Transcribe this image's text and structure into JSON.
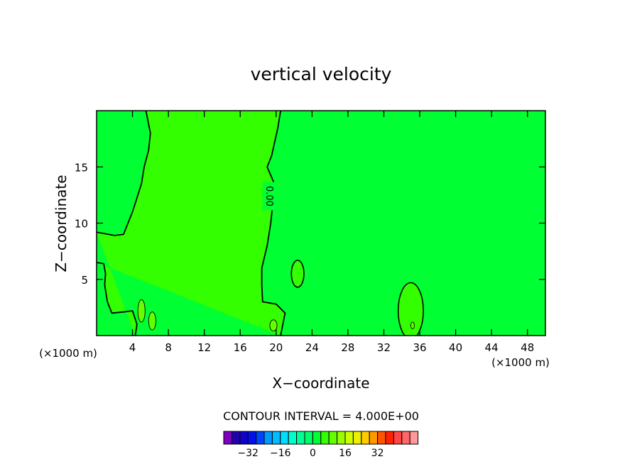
{
  "chart_data": {
    "type": "contour",
    "title": "vertical velocity",
    "xlabel": "X−coordinate",
    "ylabel": "Z−coordinate",
    "x_unit_left": "(×1000 m)",
    "x_unit_right": "(×1000 m)",
    "xlim": [
      0,
      50
    ],
    "ylim": [
      0,
      20
    ],
    "x_ticks": [
      4,
      8,
      12,
      16,
      20,
      24,
      28,
      32,
      36,
      40,
      44,
      48
    ],
    "y_ticks": [
      5,
      10,
      15
    ],
    "contour_label": "0.00",
    "contour_interval_text": "CONTOUR INTERVAL = 4.000E+00",
    "colors": {
      "plot_background": "#00ff33",
      "updraft_fill": "#33ff00",
      "strong_updraft_fill": "#66ff00",
      "contour_line": "#000000"
    },
    "updraft_region": {
      "level": 0,
      "left_boundary": [
        [
          0,
          9.2
        ],
        [
          2,
          8.9
        ],
        [
          3,
          9.0
        ],
        [
          4,
          11
        ],
        [
          5,
          13.5
        ],
        [
          5.3,
          15
        ],
        [
          5.8,
          16.5
        ],
        [
          6,
          18
        ],
        [
          5.5,
          20
        ]
      ],
      "right_boundary": [
        [
          20.5,
          20
        ],
        [
          20.2,
          18.5
        ],
        [
          19.5,
          16
        ],
        [
          19,
          15
        ],
        [
          19.8,
          13.5
        ],
        [
          19.6,
          11.5
        ],
        [
          19.4,
          10
        ],
        [
          19,
          8
        ],
        [
          18.4,
          6
        ],
        [
          18.4,
          4.5
        ],
        [
          18.5,
          3
        ],
        [
          20,
          2.8
        ],
        [
          21,
          2
        ],
        [
          20.5,
          0
        ]
      ],
      "bottom_left_boundary": [
        [
          0,
          6.5
        ],
        [
          0.8,
          6.4
        ],
        [
          1,
          5.5
        ],
        [
          0.9,
          4.5
        ],
        [
          1.2,
          3
        ],
        [
          1.7,
          2
        ],
        [
          3,
          2.1
        ],
        [
          4,
          2.2
        ],
        [
          4.5,
          1
        ],
        [
          4.3,
          0
        ]
      ]
    },
    "cells": [
      {
        "x": 22.4,
        "z": 5.5,
        "rx": 0.7,
        "rz": 1.2
      },
      {
        "x": 35,
        "z": 2.2,
        "rx": 1.4,
        "rz": 2.5
      }
    ],
    "strong_cells": [
      {
        "x": 5,
        "z": 2.2,
        "rx": 0.4,
        "rz": 1.0
      },
      {
        "x": 6.2,
        "z": 1.3,
        "rx": 0.4,
        "rz": 0.8
      },
      {
        "x": 19.7,
        "z": 0.9,
        "rx": 0.4,
        "rz": 0.5
      },
      {
        "x": 35.2,
        "z": 0.9,
        "rx": 0.2,
        "rz": 0.3
      }
    ],
    "colorbar": {
      "colors": [
        "#7f00bf",
        "#2200aa",
        "#1100cc",
        "#0011ee",
        "#0044ff",
        "#0099ff",
        "#00bbff",
        "#00ddff",
        "#00ffcc",
        "#00ff99",
        "#00ff66",
        "#00ff33",
        "#33ff00",
        "#66ff00",
        "#99ff00",
        "#ccff00",
        "#eeee00",
        "#ffcc00",
        "#ff9900",
        "#ff5500",
        "#ff2200",
        "#ff4444",
        "#ff6666",
        "#ff9999"
      ],
      "labels": [
        {
          "text": "−32",
          "index": 2
        },
        {
          "text": "−16",
          "index": 6
        },
        {
          "text": "0",
          "index": 10
        },
        {
          "text": "16",
          "index": 14
        },
        {
          "text": "32",
          "index": 18
        }
      ]
    }
  }
}
